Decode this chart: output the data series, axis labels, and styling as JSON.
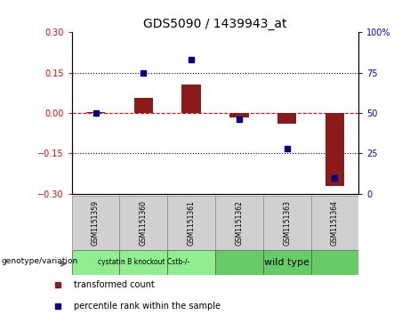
{
  "title": "GDS5090 / 1439943_at",
  "samples": [
    "GSM1151359",
    "GSM1151360",
    "GSM1151361",
    "GSM1151362",
    "GSM1151363",
    "GSM1151364"
  ],
  "transformed_counts": [
    0.003,
    0.055,
    0.105,
    -0.018,
    -0.038,
    -0.27
  ],
  "percentile_ranks": [
    50,
    75,
    83,
    46,
    28,
    10
  ],
  "groups": [
    "cystatin B knockout Cstb-/-",
    "cystatin B knockout Cstb-/-",
    "cystatin B knockout Cstb-/-",
    "wild type",
    "wild type",
    "wild type"
  ],
  "group_label1": "cystatin B knockout Cstb-/-",
  "group_label2": "wild type",
  "group_color1": "#90EE90",
  "group_color2": "#66CC66",
  "bar_color": "#8B1A1A",
  "dot_color": "#00008B",
  "ylim": [
    -0.3,
    0.3
  ],
  "y2lim": [
    0,
    100
  ],
  "yticks": [
    -0.3,
    -0.15,
    0.0,
    0.15,
    0.3
  ],
  "y2ticks": [
    0,
    25,
    50,
    75,
    100
  ],
  "dotted_lines": [
    -0.15,
    0.15
  ],
  "legend_items": [
    "transformed count",
    "percentile rank within the sample"
  ],
  "genotype_label": "genotype/variation"
}
